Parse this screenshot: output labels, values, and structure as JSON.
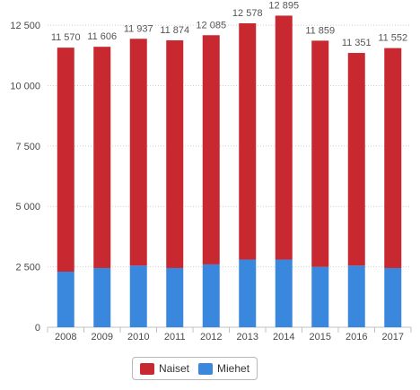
{
  "chart_data": {
    "type": "bar",
    "stacked": true,
    "categories": [
      "2008",
      "2009",
      "2010",
      "2011",
      "2012",
      "2013",
      "2014",
      "2015",
      "2016",
      "2017"
    ],
    "series": [
      {
        "name": "Naiset",
        "color": "#c8282f",
        "values": [
          9270,
          9156,
          9387,
          9424,
          9485,
          9778,
          10095,
          9359,
          8801,
          9102
        ]
      },
      {
        "name": "Miehet",
        "color": "#3a88dd",
        "values": [
          2300,
          2450,
          2550,
          2450,
          2600,
          2800,
          2800,
          2500,
          2550,
          2450
        ]
      }
    ],
    "totals": [
      11570,
      11606,
      11937,
      11874,
      12085,
      12578,
      12895,
      11859,
      11351,
      11552
    ],
    "total_labels": [
      "11 570",
      "11 606",
      "11 937",
      "11 874",
      "12 085",
      "12 578",
      "12 895",
      "11 859",
      "11 351",
      "11 552"
    ],
    "y_ticks": [
      0,
      2500,
      5000,
      7500,
      10000,
      12500
    ],
    "y_tick_labels": [
      "0",
      "2 500",
      "5 000",
      "7 500",
      "10 000",
      "12 500"
    ],
    "ylim": [
      0,
      12800
    ],
    "grid": true,
    "legend_position": "bottom",
    "title": "",
    "xlabel": "",
    "ylabel": ""
  }
}
